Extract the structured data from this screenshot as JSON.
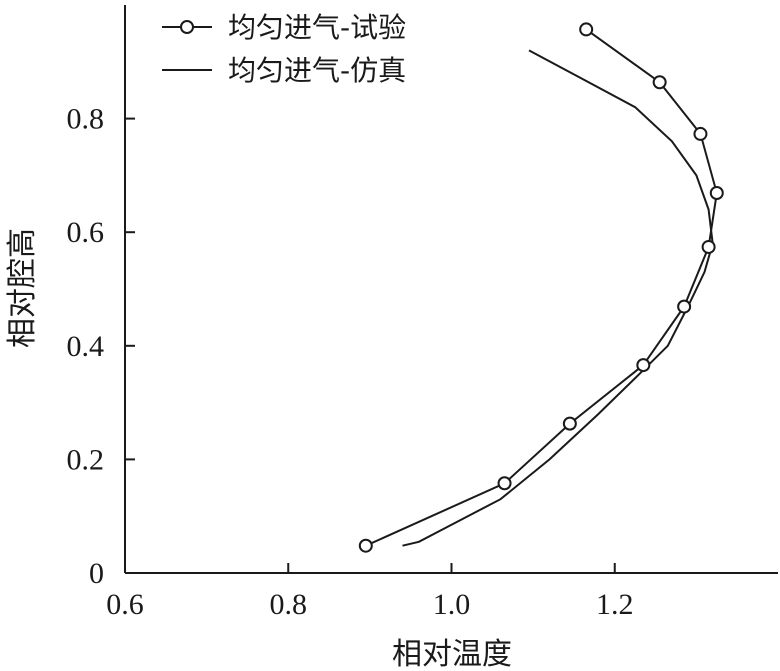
{
  "chart_data": {
    "type": "line",
    "xlabel": "相对温度",
    "ylabel": "相对腔高",
    "xlim": [
      0.6,
      1.4
    ],
    "ylim": [
      0,
      1.0
    ],
    "xticks": [
      0.6,
      0.8,
      1.0,
      1.2
    ],
    "xtick_labels": [
      "0.6",
      "0.8",
      "1.0",
      "1.2"
    ],
    "yticks": [
      0,
      0.2,
      0.4,
      0.6,
      0.8
    ],
    "ytick_labels": [
      "0",
      "0.2",
      "0.4",
      "0.6",
      "0.8"
    ],
    "legend_position": "top-left",
    "grid": false,
    "series": [
      {
        "name": "均匀进气-试验",
        "style": "line-with-open-circles",
        "x": [
          0.895,
          1.065,
          1.145,
          1.235,
          1.285,
          1.315,
          1.325,
          1.305,
          1.255,
          1.165
        ],
        "y": [
          0.048,
          0.158,
          0.263,
          0.366,
          0.469,
          0.574,
          0.669,
          0.773,
          0.864,
          0.957
        ]
      },
      {
        "name": "均匀进气-仿真",
        "style": "line",
        "x": [
          0.94,
          0.96,
          1.0,
          1.06,
          1.12,
          1.18,
          1.23,
          1.265,
          1.29,
          1.31,
          1.32,
          1.315,
          1.3,
          1.27,
          1.225,
          1.16,
          1.095
        ],
        "y": [
          0.048,
          0.055,
          0.085,
          0.13,
          0.2,
          0.28,
          0.35,
          0.4,
          0.47,
          0.53,
          0.58,
          0.64,
          0.7,
          0.76,
          0.82,
          0.87,
          0.92
        ]
      }
    ]
  }
}
